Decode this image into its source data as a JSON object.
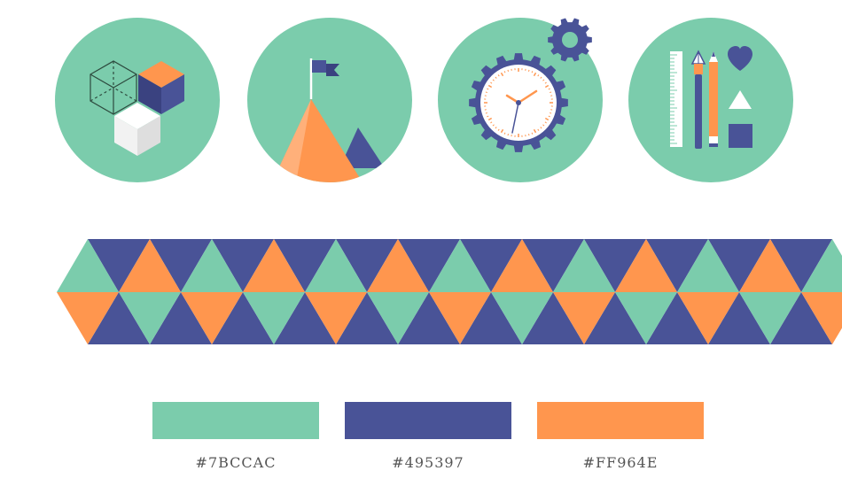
{
  "palette": {
    "mint": "#7BCCAC",
    "navy": "#495397",
    "orange": "#FF964E"
  },
  "icons": [
    {
      "name": "cubes-icon"
    },
    {
      "name": "mountain-flag-icon"
    },
    {
      "name": "clock-gear-icon"
    },
    {
      "name": "design-tools-icon"
    }
  ],
  "swatches": [
    {
      "color": "#7BCCAC",
      "label": "#7BCCAC"
    },
    {
      "color": "#495397",
      "label": "#495397"
    },
    {
      "color": "#FF964E",
      "label": "#FF964E"
    }
  ]
}
